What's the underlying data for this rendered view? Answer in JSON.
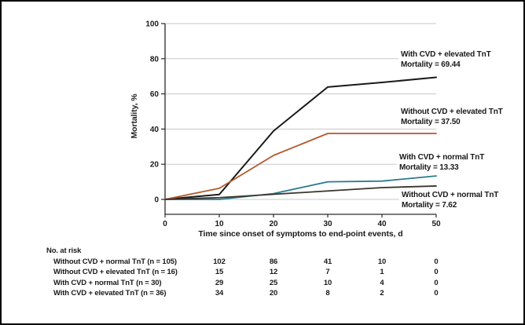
{
  "colors": {
    "background": "#ffffff",
    "frame_border": "#000000",
    "gridline": "#c9c9c9",
    "axis": "#2a2a2a",
    "text": "#1a1a1a",
    "series_with_cvd_elevated": "#1a1a1a",
    "series_without_cvd_elevated": "#b4582c",
    "series_with_cvd_normal": "#2b7a8e",
    "series_without_cvd_normal": "#3a352c"
  },
  "chart_data": {
    "type": "line",
    "title": "",
    "xlabel": "Time since onset of symptoms to end-point events, d",
    "ylabel": "Mortality, %",
    "x": [
      0,
      10,
      20,
      30,
      40,
      50
    ],
    "x_ticks": [
      "0",
      "10",
      "20",
      "30",
      "40",
      "50"
    ],
    "y_ticks": [
      "0",
      "20",
      "40",
      "60",
      "80",
      "100"
    ],
    "y_tick_values": [
      0,
      20,
      40,
      60,
      80,
      100
    ],
    "xlim": [
      0,
      50
    ],
    "ylim": [
      0,
      100
    ],
    "grid": "horizontal gridlines on",
    "legend_position": "direct labels at right of curves",
    "series": [
      {
        "name": "With CVD + elevated TnT",
        "color": "#1a1a1a",
        "values": [
          0,
          2.8,
          38.9,
          63.9,
          66.5,
          69.44
        ],
        "final_mortality": 69.44,
        "annotation": {
          "line1": "With CVD + elevated TnT",
          "line2": "Mortality = 69.44"
        }
      },
      {
        "name": "Without CVD + elevated TnT",
        "color": "#b4582c",
        "values": [
          0,
          6.3,
          25,
          37.5,
          37.5,
          37.5
        ],
        "final_mortality": 37.5,
        "annotation": {
          "line1": "Without CVD + elevated TnT",
          "line2": "Mortality = 37.50"
        }
      },
      {
        "name": "With CVD + normal TnT",
        "color": "#2b7a8e",
        "values": [
          0,
          0,
          3.3,
          10,
          10.4,
          13.33
        ],
        "final_mortality": 13.33,
        "annotation": {
          "line1": "With CVD + normal TnT",
          "line2": "Mortality = 13.33"
        }
      },
      {
        "name": "Without CVD + normal TnT",
        "color": "#3a352c",
        "values": [
          0,
          1,
          2.9,
          4.8,
          6.7,
          7.62
        ],
        "final_mortality": 7.62,
        "annotation": {
          "line1": "Without CVD + normal TnT",
          "line2": "Mortality = 7.62"
        }
      }
    ]
  },
  "risk_table": {
    "title": "No. at risk",
    "columns_days": [
      10,
      20,
      30,
      40,
      50
    ],
    "rows": [
      {
        "label": "Without CVD + normal TnT (n = 105)",
        "counts": [
          "102",
          "86",
          "41",
          "10",
          "0"
        ]
      },
      {
        "label": "Without CVD + elevated TnT (n = 16)",
        "counts": [
          "15",
          "12",
          "7",
          "1",
          "0"
        ]
      },
      {
        "label": "With CVD + normal TnT (n = 30)",
        "counts": [
          "29",
          "25",
          "10",
          "4",
          "0"
        ]
      },
      {
        "label": "With CVD + elevated TnT (n = 36)",
        "counts": [
          "34",
          "20",
          "8",
          "2",
          "0"
        ]
      }
    ]
  }
}
